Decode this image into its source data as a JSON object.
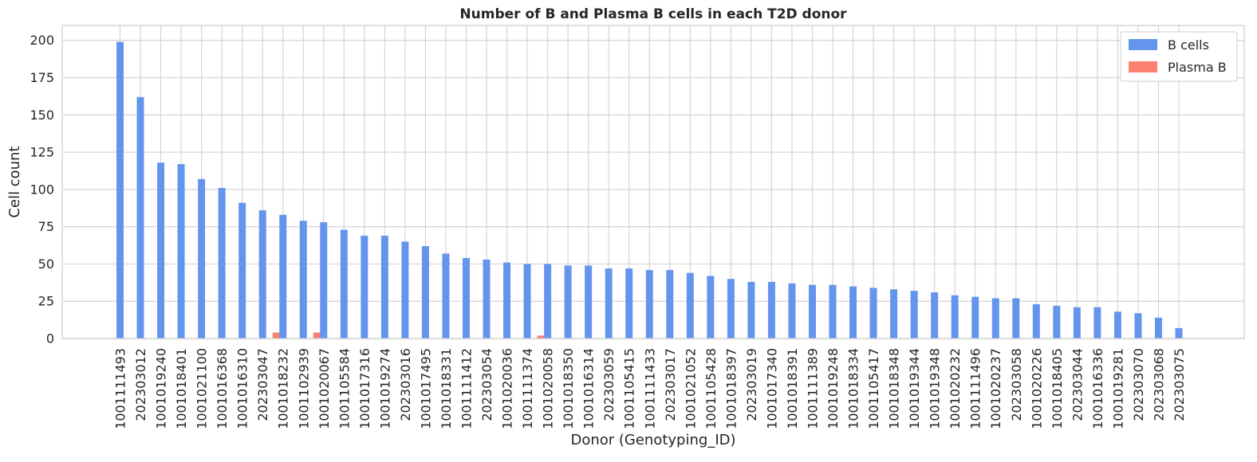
{
  "chart_data": {
    "type": "bar",
    "title": "Number of B and Plasma B cells in each T2D donor",
    "xlabel": "Donor (Genotyping_ID)",
    "ylabel": "Cell count",
    "ylim": [
      0,
      210
    ],
    "yticks": [
      0,
      25,
      50,
      75,
      100,
      125,
      150,
      175,
      200
    ],
    "grid": true,
    "legend_position": "top-right",
    "categories": [
      "1001111493",
      "202303012",
      "1001019240",
      "1001018401",
      "1001021100",
      "1001016368",
      "1001016310",
      "202303047",
      "1001018232",
      "1001102939",
      "1001020067",
      "1001105584",
      "1001017316",
      "1001019274",
      "202303016",
      "1001017495",
      "1001018331",
      "1001111412",
      "202303054",
      "1001020036",
      "1001111374",
      "1001020058",
      "1001018350",
      "1001016314",
      "202303059",
      "1001105415",
      "1001111433",
      "202303017",
      "1001021052",
      "1001105428",
      "1001018397",
      "202303019",
      "1001017340",
      "1001018391",
      "1001111389",
      "1001019248",
      "1001018334",
      "1001105417",
      "1001018348",
      "1001019344",
      "1001019348",
      "1001020232",
      "1001111496",
      "1001020237",
      "202303058",
      "1001020226",
      "1001018405",
      "202303044",
      "1001016336",
      "1001019281",
      "202303070",
      "202303068",
      "202303075"
    ],
    "series": [
      {
        "name": "B cells",
        "color": "#6495ED",
        "values": [
          199,
          162,
          118,
          117,
          107,
          101,
          91,
          86,
          83,
          79,
          78,
          73,
          69,
          69,
          65,
          62,
          57,
          54,
          53,
          51,
          50,
          50,
          49,
          49,
          47,
          47,
          46,
          46,
          44,
          42,
          40,
          38,
          38,
          37,
          36,
          36,
          35,
          34,
          33,
          32,
          31,
          29,
          28,
          27,
          27,
          23,
          22,
          21,
          21,
          18,
          17,
          14,
          7
        ]
      },
      {
        "name": "Plasma B",
        "color": "#FA8072",
        "values": [
          0,
          0,
          0,
          0,
          0,
          0,
          0,
          4,
          0,
          4,
          0,
          0,
          0,
          0,
          0,
          0,
          0,
          0,
          0,
          0,
          2,
          0,
          0,
          0,
          0,
          0,
          0,
          0,
          0,
          0,
          0,
          0,
          0,
          0,
          0,
          0,
          0,
          0,
          0,
          0,
          0,
          0,
          0,
          0,
          0,
          0,
          0,
          0,
          0,
          0,
          0,
          0,
          0
        ]
      }
    ]
  }
}
